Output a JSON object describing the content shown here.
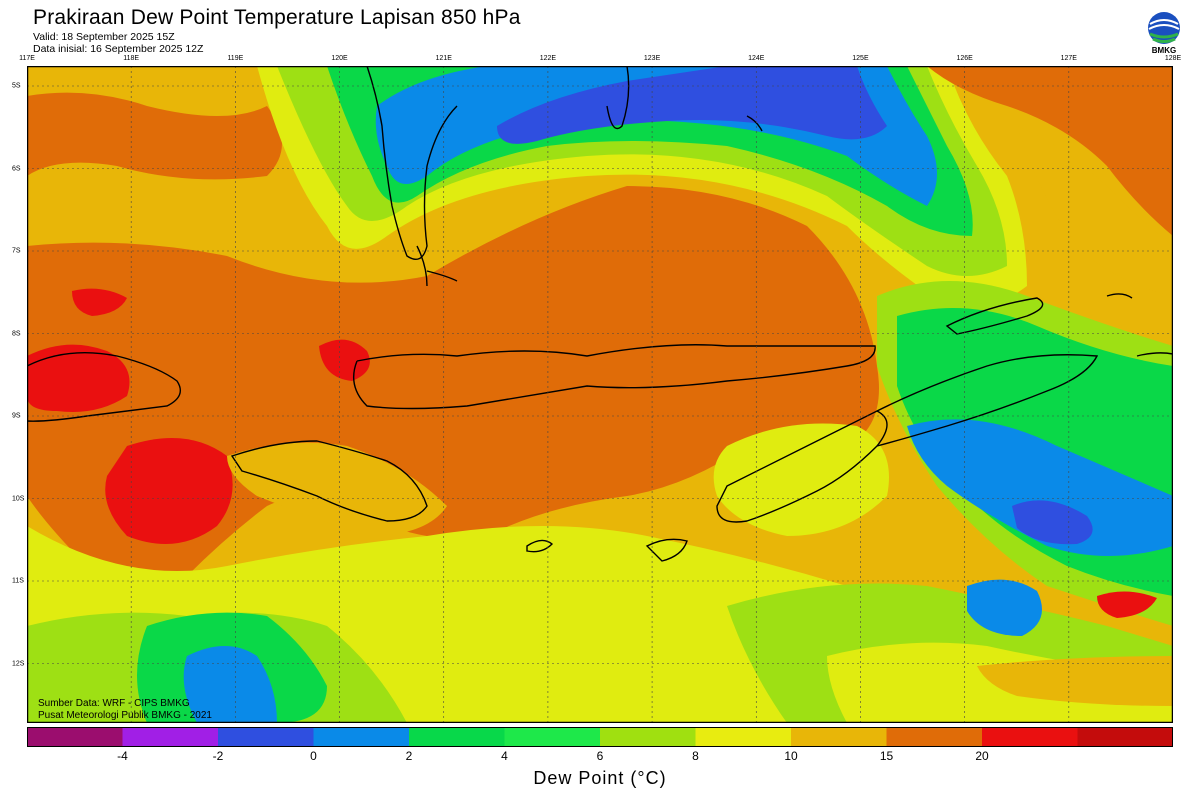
{
  "header": {
    "title": "Prakiraan Dew Point Temperature Lapisan 850 hPa",
    "valid": "Valid: 18 September 2025 15Z",
    "init": "Data inisial: 16 September 2025 12Z"
  },
  "logo": {
    "label": "BMKG",
    "icon": "bmkg-logo-icon"
  },
  "axes": {
    "lon_labels": [
      "117E",
      "118E",
      "119E",
      "120E",
      "121E",
      "122E",
      "123E",
      "124E",
      "125E",
      "126E",
      "127E",
      "128E"
    ],
    "lat_labels": [
      "5S",
      "6S",
      "7S",
      "8S",
      "9S",
      "10S",
      "11S",
      "12S"
    ]
  },
  "credits": {
    "line1": "Sumber Data: WRF - CIPS BMKG",
    "line2": "Pusat Meteorologi Publik BMKG - 2021"
  },
  "colorbar": {
    "title": "Dew Point (°C)",
    "colors": [
      "#9b0d6e",
      "#a11fe6",
      "#2f4fe0",
      "#0a8ae8",
      "#08d84a",
      "#1ee84a",
      "#a0e010",
      "#e8ec10",
      "#e8b608",
      "#e06c08",
      "#ea1010",
      "#c40c0c"
    ],
    "labels": [
      "-4",
      "-2",
      "0",
      "2",
      "4",
      "6",
      "8",
      "10",
      "15",
      "20"
    ]
  },
  "map_colors": {
    "red": "#ea1010",
    "orange": "#e06c08",
    "amber": "#e8b608",
    "yellow": "#e0ec10",
    "lime": "#9ee014",
    "green": "#0ad848",
    "blue": "#0a8ae8",
    "deepblue": "#2f4fe0"
  }
}
